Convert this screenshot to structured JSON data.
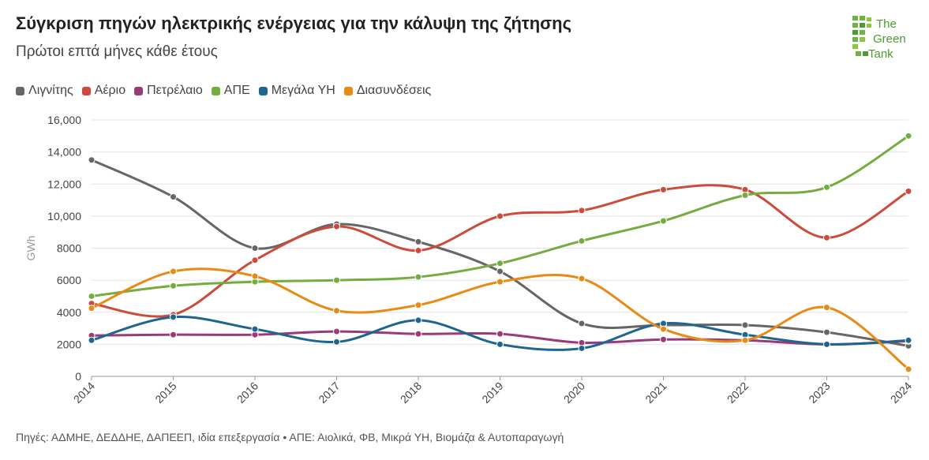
{
  "header": {
    "title": "Σύγκριση πηγών ηλεκτρικής ενέργειας για την κάλυψη της ζήτησης",
    "subtitle": "Πρώτοι επτά μήνες κάθε έτους",
    "logo_text": [
      "The",
      "Green",
      "Tank"
    ]
  },
  "footer": {
    "source": "Πηγές: ΑΔΜΗΕ, ΔΕΔΔΗΕ, ΔΑΠΕΕΠ, ιδία επεξεργασία • ΑΠΕ: Αιολικά, ΦΒ, Μικρά ΥΗ, Βιομάζα & Αυτοπαραγωγή"
  },
  "chart_data": {
    "type": "line",
    "title": "Σύγκριση πηγών ηλεκτρικής ενέργειας για την κάλυψη της ζήτησης",
    "subtitle": "Πρώτοι επτά μήνες κάθε έτους",
    "ylabel": "GWh",
    "xlabel": "",
    "ylim": [
      0,
      16000
    ],
    "yticks": [
      0,
      2000,
      4000,
      6000,
      8000,
      10000,
      12000,
      14000,
      16000
    ],
    "ytick_labels": [
      "0",
      "2000",
      "4000",
      "6000",
      "8000",
      "10,000",
      "12,000",
      "14,000",
      "16,000"
    ],
    "grid": true,
    "legend_position": "top-left",
    "x": [
      "2014",
      "2015",
      "2016",
      "2017",
      "2018",
      "2019",
      "2020",
      "2021",
      "2022",
      "2023",
      "2024"
    ],
    "series": [
      {
        "name": "Λιγνίτης",
        "color": "#666666",
        "values": [
          13500,
          11200,
          8000,
          9500,
          8400,
          6550,
          3300,
          3200,
          3200,
          2750,
          1900
        ]
      },
      {
        "name": "Αέριο",
        "color": "#cd4b3b",
        "values": [
          4550,
          3850,
          7250,
          9350,
          7850,
          10000,
          10350,
          11650,
          11650,
          8650,
          11550
        ]
      },
      {
        "name": "Πετρέλαιο",
        "color": "#9b3a79",
        "values": [
          2550,
          2600,
          2600,
          2800,
          2650,
          2650,
          2100,
          2300,
          2250,
          2000,
          2200
        ]
      },
      {
        "name": "ΑΠΕ",
        "color": "#73ad3f",
        "values": [
          5000,
          5650,
          5900,
          6000,
          6200,
          7050,
          8450,
          9700,
          11300,
          11800,
          15000
        ]
      },
      {
        "name": "Μεγάλα ΥΗ",
        "color": "#1f6591",
        "values": [
          2250,
          3700,
          2950,
          2150,
          3500,
          2000,
          1750,
          3300,
          2600,
          2000,
          2250
        ]
      },
      {
        "name": "Διασυνδέσεις",
        "color": "#e88a14",
        "values": [
          4250,
          6550,
          6250,
          4100,
          4450,
          5900,
          6100,
          2950,
          2250,
          4300,
          450
        ]
      }
    ]
  }
}
